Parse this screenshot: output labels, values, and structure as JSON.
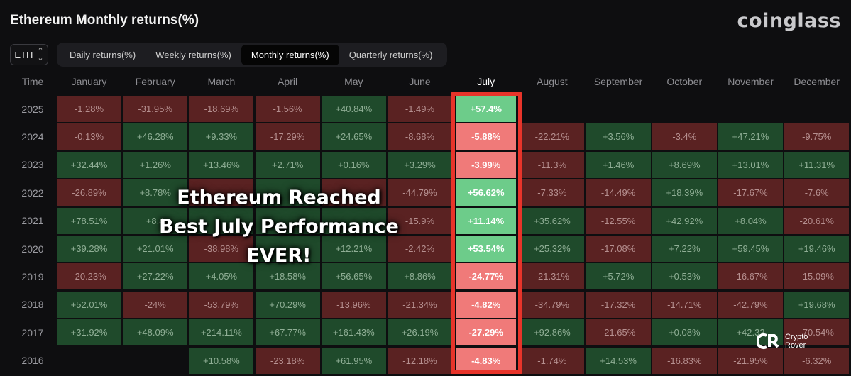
{
  "title": "Ethereum Monthly returns(%)",
  "brand": "coinglass",
  "asset_select": {
    "value": "ETH",
    "icon": "chevron-up-down-icon"
  },
  "tabs": [
    {
      "label": "Daily returns(%)",
      "active": false
    },
    {
      "label": "Weekly returns(%)",
      "active": false
    },
    {
      "label": "Monthly returns(%)",
      "active": true
    },
    {
      "label": "Quarterly returns(%)",
      "active": false
    }
  ],
  "table": {
    "time_header": "Time",
    "months": [
      "January",
      "February",
      "March",
      "April",
      "May",
      "June",
      "July",
      "August",
      "September",
      "October",
      "November",
      "December"
    ],
    "highlight_month": "July",
    "rows": [
      {
        "year": "2025",
        "values": [
          "-1.28%",
          "-31.95%",
          "-18.69%",
          "-1.56%",
          "+40.84%",
          "-1.49%",
          "+57.4%",
          "",
          "",
          "",
          "",
          ""
        ]
      },
      {
        "year": "2024",
        "values": [
          "-0.13%",
          "+46.28%",
          "+9.33%",
          "-17.29%",
          "+24.65%",
          "-8.68%",
          "-5.88%",
          "-22.21%",
          "+3.56%",
          "-3.4%",
          "+47.21%",
          "-9.75%"
        ]
      },
      {
        "year": "2023",
        "values": [
          "+32.44%",
          "+1.26%",
          "+13.46%",
          "+2.71%",
          "+0.16%",
          "+3.29%",
          "-3.99%",
          "-11.3%",
          "+1.46%",
          "+8.69%",
          "+13.01%",
          "+11.31%"
        ]
      },
      {
        "year": "2022",
        "values": [
          "-26.89%",
          "+8.78%",
          "",
          "",
          "",
          "-44.79%",
          "+56.62%",
          "-7.33%",
          "-14.49%",
          "+18.39%",
          "-17.67%",
          "-7.6%"
        ]
      },
      {
        "year": "2021",
        "values": [
          "+78.51%",
          "+8.4",
          "",
          "",
          "",
          "-15.9%",
          "+11.14%",
          "+35.62%",
          "-12.55%",
          "+42.92%",
          "+8.04%",
          "-20.61%"
        ]
      },
      {
        "year": "2020",
        "values": [
          "+39.28%",
          "+21.01%",
          "-38.98%",
          "",
          "+12.21%",
          "-2.42%",
          "+53.54%",
          "+25.32%",
          "-17.08%",
          "+7.22%",
          "+59.45%",
          "+19.46%"
        ]
      },
      {
        "year": "2019",
        "values": [
          "-20.23%",
          "+27.22%",
          "+4.05%",
          "+18.58%",
          "+56.65%",
          "+8.86%",
          "-24.77%",
          "-21.31%",
          "+5.72%",
          "+0.53%",
          "-16.67%",
          "-15.09%"
        ]
      },
      {
        "year": "2018",
        "values": [
          "+52.01%",
          "-24%",
          "-53.79%",
          "+70.29%",
          "-13.96%",
          "-21.34%",
          "-4.82%",
          "-34.79%",
          "-17.32%",
          "-14.71%",
          "-42.79%",
          "+19.68%"
        ]
      },
      {
        "year": "2017",
        "values": [
          "+31.92%",
          "+48.09%",
          "+214.11%",
          "+67.77%",
          "+161.43%",
          "+26.19%",
          "-27.29%",
          "+92.86%",
          "-21.65%",
          "+0.08%",
          "+42.32",
          "-70.54%"
        ]
      },
      {
        "year": "2016",
        "values": [
          "",
          "",
          "+10.58%",
          "-23.18%",
          "+61.95%",
          "-12.18%",
          "-4.83%",
          "-1.74%",
          "+14.53%",
          "-16.83%",
          "-21.95%",
          "-6.32%"
        ]
      }
    ],
    "cell_signs": [
      [
        "neg",
        "neg",
        "neg",
        "neg",
        "pos",
        "neg",
        "pos",
        "empty",
        "empty",
        "empty",
        "empty",
        "empty"
      ],
      [
        "neg",
        "pos",
        "pos",
        "neg",
        "pos",
        "neg",
        "neg",
        "neg",
        "pos",
        "neg",
        "pos",
        "neg"
      ],
      [
        "pos",
        "pos",
        "pos",
        "pos",
        "pos",
        "pos",
        "neg",
        "neg",
        "pos",
        "pos",
        "pos",
        "pos"
      ],
      [
        "neg",
        "pos",
        "neg",
        "pos",
        "neg",
        "neg",
        "pos",
        "neg",
        "neg",
        "pos",
        "neg",
        "neg"
      ],
      [
        "pos",
        "pos",
        "pos",
        "pos",
        "pos",
        "neg",
        "pos",
        "pos",
        "neg",
        "pos",
        "pos",
        "neg"
      ],
      [
        "pos",
        "pos",
        "neg",
        "pos",
        "pos",
        "neg",
        "pos",
        "pos",
        "neg",
        "pos",
        "pos",
        "pos"
      ],
      [
        "neg",
        "pos",
        "pos",
        "pos",
        "pos",
        "pos",
        "neg",
        "neg",
        "pos",
        "pos",
        "neg",
        "neg"
      ],
      [
        "pos",
        "neg",
        "neg",
        "pos",
        "neg",
        "neg",
        "neg",
        "neg",
        "neg",
        "neg",
        "neg",
        "pos"
      ],
      [
        "pos",
        "pos",
        "pos",
        "pos",
        "pos",
        "pos",
        "neg",
        "pos",
        "neg",
        "pos",
        "pos",
        "neg"
      ],
      [
        "empty",
        "empty",
        "pos",
        "neg",
        "pos",
        "neg",
        "neg",
        "neg",
        "pos",
        "neg",
        "neg",
        "neg"
      ]
    ]
  },
  "overlay_text": {
    "line1": "Ethereum Reached",
    "line2": "Best July Performance",
    "line3": "EVER!"
  },
  "watermark": {
    "line1": "Crypto",
    "line2": "Rover"
  },
  "colors": {
    "positive_cell": "#1f4a2b",
    "negative_cell": "#5a2222",
    "july_positive": "#6dcc8a",
    "july_negative": "#f07a79",
    "highlight_frame": "#e8342a"
  }
}
